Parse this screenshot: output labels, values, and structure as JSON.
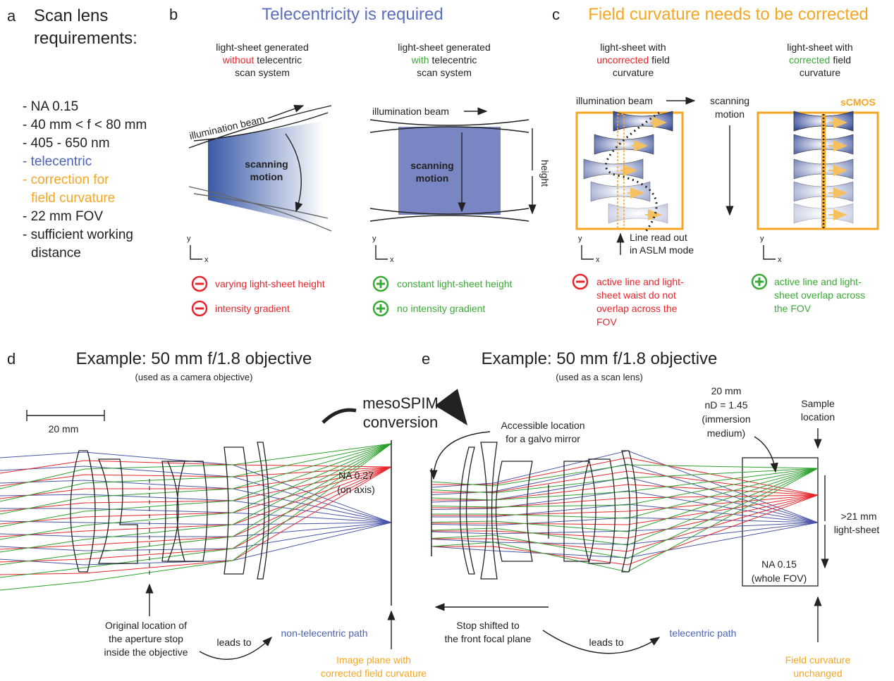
{
  "panel_a": {
    "letter": "a",
    "title": [
      "Scan lens",
      "requirements:"
    ],
    "items": [
      "- NA 0.15",
      "- 40 mm < f < 80 mm",
      "- 405 - 650 nm",
      "- telecentric",
      "- correction for",
      "field curvature",
      "- 22 mm FOV",
      "- sufficient working",
      "distance"
    ]
  },
  "panel_b": {
    "letter": "b",
    "title": "Telecentricity is required",
    "left": {
      "caption": [
        "light-sheet generated",
        "without",
        "telecentric",
        "scan system"
      ],
      "beam": "illumination beam",
      "motion": [
        "scanning",
        "motion"
      ],
      "axes": [
        "y",
        "x"
      ],
      "cons": [
        "varying light-sheet height",
        "intensity gradient"
      ]
    },
    "right": {
      "caption": [
        "light-sheet generated",
        "with",
        "telecentric",
        "scan system"
      ],
      "beam": "illumination beam",
      "motion": [
        "scanning",
        "motion"
      ],
      "height": "height",
      "axes": [
        "y",
        "x"
      ],
      "pros": [
        "constant light-sheet height",
        "no intensity gradient"
      ]
    }
  },
  "panel_c": {
    "letter": "c",
    "title": "Field curvature needs to be corrected",
    "left": {
      "caption": [
        "light-sheet with",
        "uncorrected",
        "field",
        "curvature"
      ],
      "beam": "illumination beam",
      "readout": [
        "Line read out",
        "in ASLM mode"
      ],
      "axes": [
        "y",
        "x"
      ],
      "cons": [
        "active line and light-",
        "sheet waist do not",
        "overlap across the",
        "FOV"
      ]
    },
    "motion": [
      "scanning",
      "motion"
    ],
    "right": {
      "caption": [
        "light-sheet with",
        "corrected",
        "field",
        "curvature"
      ],
      "camera": "sCMOS",
      "axes": [
        "y",
        "x"
      ],
      "pros": [
        "active line and light-",
        "sheet overlap across",
        "the FOV"
      ]
    }
  },
  "panel_d": {
    "letter": "d",
    "title": "Example: 50 mm f/1.8 objective",
    "subtitle": "(used as a camera objective)",
    "scale": "20 mm",
    "na": [
      "NA 0.27",
      "(on axis)"
    ],
    "stop": [
      "Original location of",
      "the aperture stop",
      "inside the objective"
    ],
    "leads": "leads to",
    "path": "non-telecentric path",
    "image_plane": [
      "Image plane with",
      "corrected field curvature"
    ]
  },
  "conversion": [
    "mesoSPIM",
    "conversion"
  ],
  "panel_e": {
    "letter": "e",
    "title": "Example: 50 mm f/1.8 objective",
    "subtitle": "(used as a scan lens)",
    "galvo": [
      "Accessible location",
      "for a galvo mirror"
    ],
    "medium": [
      "20 mm",
      "nD = 1.45",
      "(immersion",
      "medium)"
    ],
    "sample": [
      "Sample",
      "location"
    ],
    "sheet": [
      ">21 mm",
      "light-sheet"
    ],
    "na": [
      "NA 0.15",
      "(whole FOV)"
    ],
    "stop": [
      "Stop shifted to",
      "the front focal plane"
    ],
    "leads": "leads to",
    "path": "telecentric path",
    "curvature": [
      "Field curvature",
      "unchanged"
    ]
  }
}
